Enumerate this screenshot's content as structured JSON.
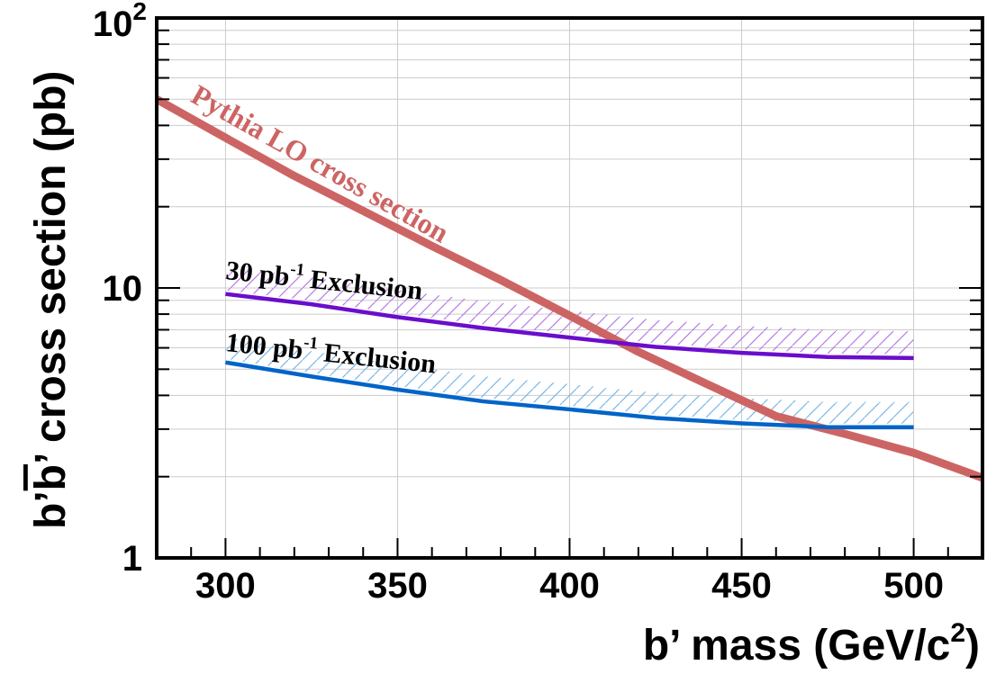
{
  "chart_data": {
    "type": "line",
    "xlabel": "b’ mass (GeV/c",
    "xlabel_sup": "2",
    "xlabel_end": ")",
    "ylabel_parts": [
      "b’",
      "b",
      "’ cross section (pb)"
    ],
    "xlim": [
      280,
      520
    ],
    "ylim": [
      1,
      100
    ],
    "yscale": "log",
    "grid": true,
    "x_ticks": [
      300,
      350,
      400,
      450,
      500
    ],
    "y_ticks": [
      {
        "value": 1,
        "label": "1"
      },
      {
        "value": 10,
        "label": "10"
      },
      {
        "value": 100,
        "base": "10",
        "exp": "2"
      }
    ],
    "series": [
      {
        "name": "Pythia LO cross section",
        "color": "#cd6464",
        "x": [
          280,
          300,
          320,
          340,
          360,
          380,
          400,
          420,
          440,
          460,
          480,
          500,
          520
        ],
        "y": [
          50,
          36,
          26,
          19.3,
          14.3,
          10.7,
          7.9,
          5.8,
          4.4,
          3.35,
          2.88,
          2.45,
          1.98
        ]
      },
      {
        "name": "30 pb-1 Exclusion",
        "label_main": "30 pb",
        "label_sup": "-1",
        "label_end": " Exclusion",
        "color": "#6a0dcc",
        "hatch_color": "#b87be8",
        "x": [
          300,
          325,
          350,
          375,
          400,
          425,
          450,
          475,
          500
        ],
        "y": [
          9.5,
          8.7,
          7.8,
          7.1,
          6.55,
          6.05,
          5.75,
          5.55,
          5.5
        ]
      },
      {
        "name": "100 pb-1 Exclusion",
        "label_main": "100 pb",
        "label_sup": "-1",
        "label_end": " Exclusion",
        "color": "#0064c8",
        "hatch_color": "#7ab7e8",
        "x": [
          300,
          325,
          350,
          375,
          400,
          425,
          450,
          475,
          500
        ],
        "y": [
          5.3,
          4.7,
          4.2,
          3.8,
          3.55,
          3.3,
          3.15,
          3.05,
          3.05
        ]
      }
    ]
  }
}
